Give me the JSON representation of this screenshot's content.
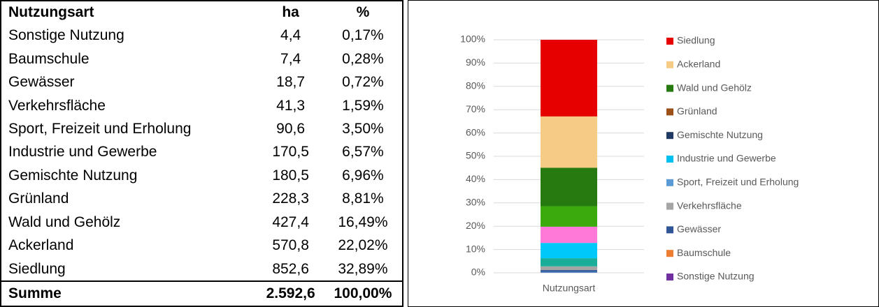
{
  "table": {
    "header": [
      "Nutzungsart",
      "ha",
      "%"
    ],
    "rows": [
      [
        "Sonstige Nutzung",
        "4,4",
        "0,17%"
      ],
      [
        "Baumschule",
        "7,4",
        "0,28%"
      ],
      [
        "Gewässer",
        "18,7",
        "0,72%"
      ],
      [
        "Verkehrsfläche",
        "41,3",
        "1,59%"
      ],
      [
        "Sport, Freizeit und Erholung",
        "90,6",
        "3,50%"
      ],
      [
        "Industrie und Gewerbe",
        "170,5",
        "6,57%"
      ],
      [
        "Gemischte Nutzung",
        "180,5",
        "6,96%"
      ],
      [
        "Grünland",
        "228,3",
        "8,81%"
      ],
      [
        "Wald und Gehölz",
        "427,4",
        "16,49%"
      ],
      [
        "Ackerland",
        "570,8",
        "22,02%"
      ],
      [
        "Siedlung",
        "852,6",
        "32,89%"
      ]
    ],
    "total": [
      "Summe",
      "2.592,6",
      "100,00%"
    ]
  },
  "chart_data": {
    "type": "stacked_bar",
    "categories": [
      "Nutzungsart"
    ],
    "ylim": [
      0,
      100
    ],
    "yticks": [
      {
        "value": 0,
        "label": "0%"
      },
      {
        "value": 10,
        "label": "10%"
      },
      {
        "value": 20,
        "label": "20%"
      },
      {
        "value": 30,
        "label": "30%"
      },
      {
        "value": 40,
        "label": "40%"
      },
      {
        "value": 50,
        "label": "50%"
      },
      {
        "value": 60,
        "label": "60%"
      },
      {
        "value": 70,
        "label": "70%"
      },
      {
        "value": 80,
        "label": "80%"
      },
      {
        "value": 90,
        "label": "90%"
      },
      {
        "value": 100,
        "label": "100%"
      }
    ],
    "grid": true,
    "legend": "right",
    "series": [
      {
        "name": "Sonstige Nutzung",
        "color": "#4a66ac",
        "legend_color": "#7030a0",
        "values": [
          0.17
        ]
      },
      {
        "name": "Baumschule",
        "color": "#5b9bd5",
        "legend_color": "#ed7d31",
        "values": [
          0.28
        ]
      },
      {
        "name": "Gewässer",
        "color": "#2f5597",
        "legend_color": "#2f5597",
        "values": [
          0.72
        ]
      },
      {
        "name": "Verkehrsfläche",
        "color": "#a5a5a5",
        "legend_color": "#a5a5a5",
        "values": [
          1.59
        ]
      },
      {
        "name": "Sport, Freizeit und Erholung",
        "color": "#1aae9a",
        "legend_color": "#5b9bd5",
        "values": [
          3.5
        ]
      },
      {
        "name": "Industrie und Gewerbe",
        "color": "#00c8f8",
        "legend_color": "#00c0f0",
        "values": [
          6.57
        ]
      },
      {
        "name": "Gemischte Nutzung",
        "color": "#ff7ad8",
        "legend_color": "#203864",
        "values": [
          6.96
        ]
      },
      {
        "name": "Grünland",
        "color": "#3aaa0c",
        "legend_color": "#9c4f16",
        "values": [
          8.81
        ]
      },
      {
        "name": "Wald und Gehölz",
        "color": "#277a10",
        "legend_color": "#277a10",
        "values": [
          16.49
        ]
      },
      {
        "name": "Ackerland",
        "color": "#f5cb85",
        "legend_color": "#f5cb85",
        "values": [
          22.02
        ]
      },
      {
        "name": "Siedlung",
        "color": "#e60000",
        "legend_color": "#e60000",
        "values": [
          32.89
        ]
      }
    ]
  }
}
